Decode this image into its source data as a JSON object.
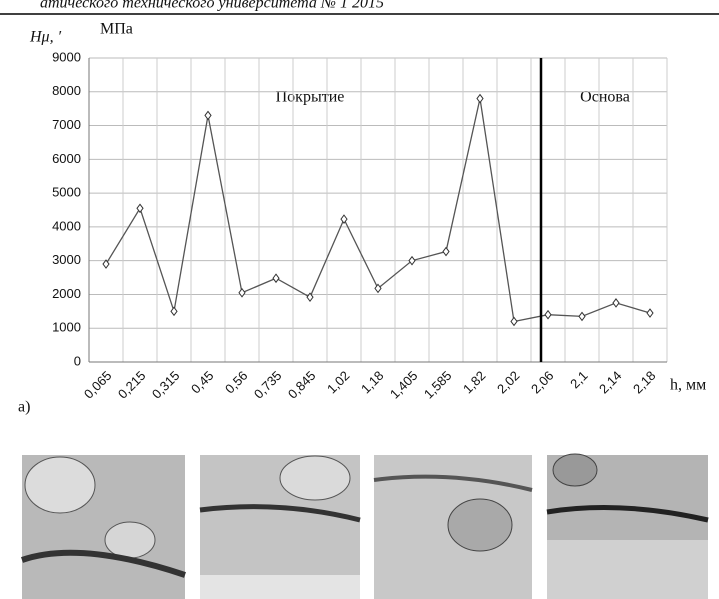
{
  "header": "атического технического университета № 1 2015",
  "chart_data": {
    "type": "line",
    "y_label": "Hμ, ′",
    "y_unit": "МПа",
    "x_label": "h, мм",
    "panel_label": "а)",
    "annotations": [
      "Покрытие",
      "Основа"
    ],
    "categories": [
      "0,065",
      "0,215",
      "0,315",
      "0,45",
      "0,56",
      "0,735",
      "0,845",
      "1,02",
      "1,18",
      "1,405",
      "1,585",
      "1,82",
      "2,02",
      "2,06",
      "2,1",
      "2,14",
      "2,18"
    ],
    "values": [
      2900,
      4550,
      1500,
      7300,
      2050,
      2480,
      1920,
      4230,
      2180,
      3000,
      3270,
      7800,
      1200,
      1400,
      1350,
      1750,
      1450
    ],
    "color": "#555555",
    "ylim": [
      0,
      9000
    ],
    "yticks": [
      0,
      1000,
      2000,
      3000,
      4000,
      5000,
      6000,
      7000,
      8000,
      9000
    ],
    "grid": true
  }
}
